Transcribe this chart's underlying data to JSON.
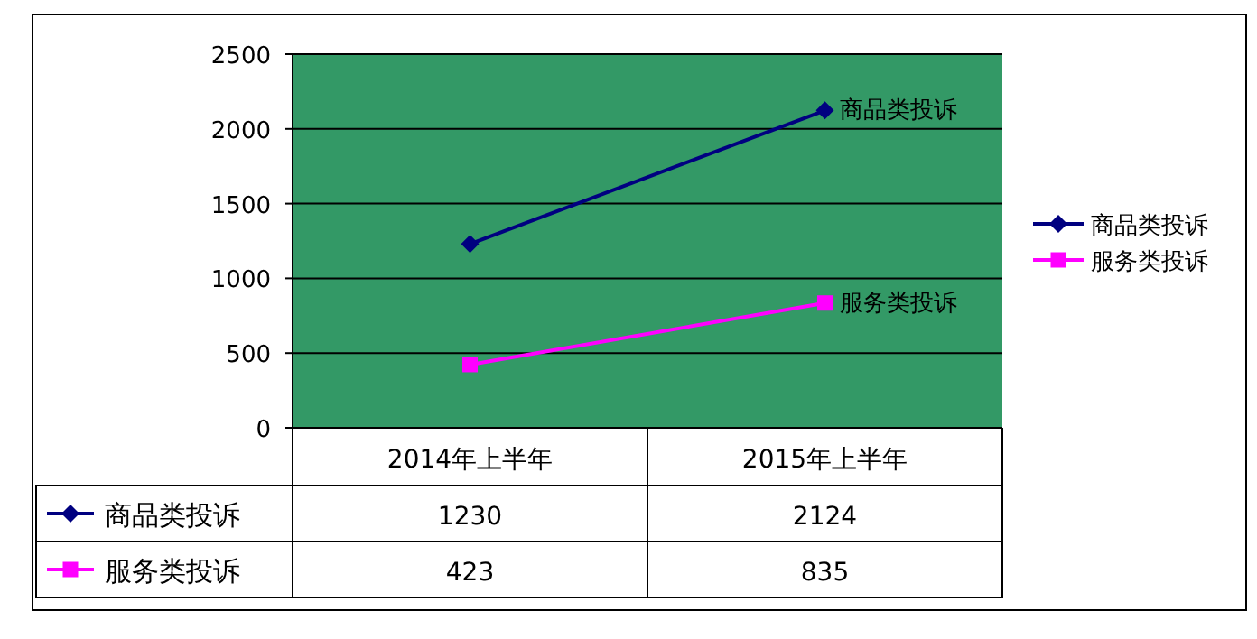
{
  "chart_data": {
    "type": "line",
    "categories": [
      "2014年上半年",
      "2015年上半年"
    ],
    "series": [
      {
        "name": "商品类投诉",
        "color": "#000080",
        "marker": "diamond",
        "values": [
          1230,
          2124
        ]
      },
      {
        "name": "服务类投诉",
        "color": "#ff00ff",
        "marker": "square",
        "values": [
          423,
          835
        ]
      }
    ],
    "ylim": [
      0,
      2500
    ],
    "yticks": [
      0,
      500,
      1000,
      1500,
      2000,
      2500
    ],
    "grid": "y",
    "legend": "right",
    "data_labels": true
  }
}
